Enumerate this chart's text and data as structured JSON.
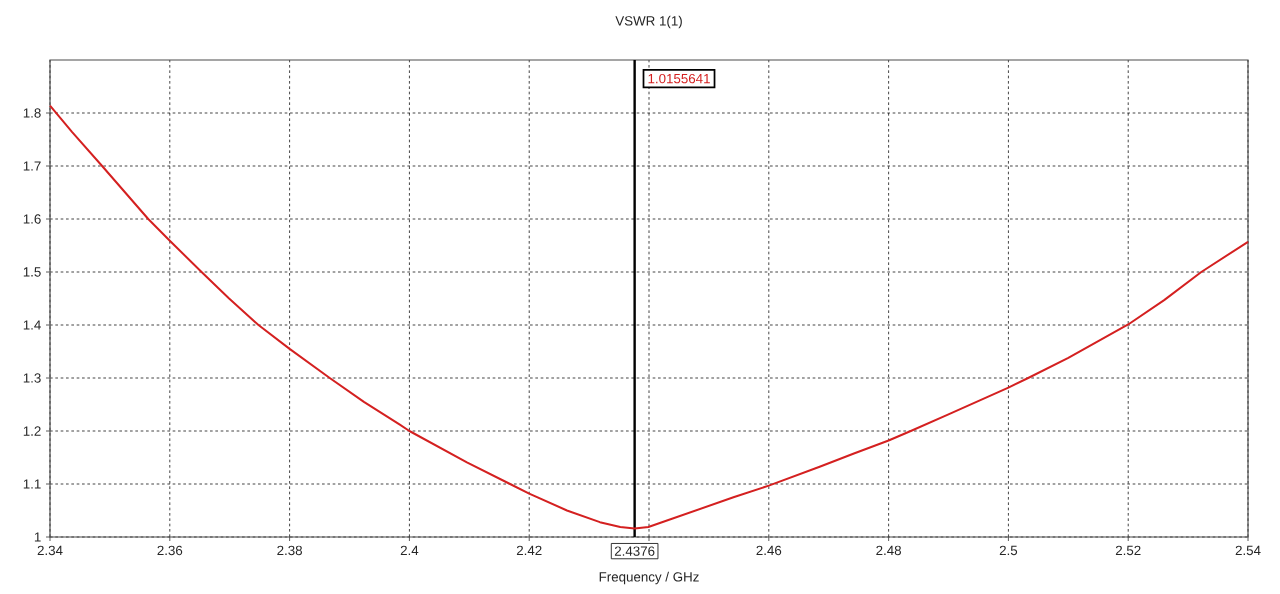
{
  "chart_data": {
    "type": "line",
    "title": "VSWR 1(1)",
    "xlabel": "Frequency / GHz",
    "x": [
      2.34,
      2.3437,
      2.3487,
      2.3564,
      2.36,
      2.3653,
      2.3699,
      2.3748,
      2.38,
      2.3867,
      2.3924,
      2.3984,
      2.4,
      2.4096,
      2.4168,
      2.42,
      2.4263,
      2.4318,
      2.4352,
      2.4376,
      2.4399,
      2.443,
      2.4541,
      2.46,
      2.4686,
      2.4741,
      2.48,
      2.4837,
      2.4899,
      2.5,
      2.5033,
      2.51,
      2.52,
      2.526,
      2.5322,
      2.54
    ],
    "series": [
      {
        "color": "#d42020",
        "values": [
          1.814,
          1.764,
          1.7,
          1.6,
          1.559,
          1.5,
          1.45,
          1.4,
          1.355,
          1.3,
          1.255,
          1.212,
          1.2,
          1.141,
          1.1,
          1.082,
          1.05,
          1.028,
          1.019,
          1.016,
          1.019,
          1.031,
          1.075,
          1.097,
          1.133,
          1.157,
          1.182,
          1.2,
          1.231,
          1.282,
          1.3,
          1.338,
          1.401,
          1.447,
          1.5,
          1.557
        ]
      }
    ],
    "xlim": [
      2.34,
      2.54
    ],
    "ylim": [
      1,
      1.9
    ],
    "xticks": [
      2.34,
      2.36,
      2.38,
      2.4,
      2.42,
      {
        "value": 2.44,
        "label": null
      },
      2.46,
      2.48,
      2.5,
      2.52,
      2.54
    ],
    "yticks": [
      1,
      1.1,
      1.2,
      1.3,
      1.4,
      1.5,
      1.6,
      1.7,
      1.8
    ],
    "grid": true,
    "line_style": "solid",
    "ref_lines": [
      {
        "axis": "x",
        "value": 2.4376,
        "label": "2.4376",
        "color": "#000000"
      }
    ],
    "annotations": [
      "1.0155641"
    ]
  }
}
